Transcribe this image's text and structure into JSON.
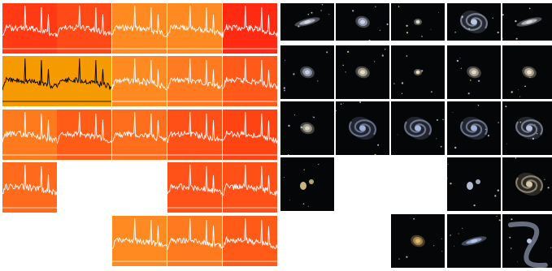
{
  "spectra_panel": {
    "rows": [
      {
        "cells": [
          {
            "color": "#ff3a14",
            "line_color": "#ffffff"
          },
          {
            "color": "#ff4a18",
            "line_color": "#ffffff"
          },
          {
            "color": "#ff8a22",
            "line_color": "#ffffff"
          },
          {
            "color": "#ff8a22",
            "line_color": "#ffffff"
          },
          {
            "color": "#ff2a12",
            "line_color": "#ffffff"
          }
        ]
      },
      {
        "cells": [
          {
            "color": "#f59a00",
            "line_color": "#000000"
          },
          {
            "color": "#f59a00",
            "line_color": "#000000"
          },
          {
            "color": "#ff8a22",
            "line_color": "#ffffff"
          },
          {
            "color": "#ff7a20",
            "line_color": "#ffffff"
          },
          {
            "color": "#ff5a1a",
            "line_color": "#ffffff"
          }
        ]
      },
      {
        "cells": [
          {
            "color": "#ff7a1c",
            "line_color": "#ffffff"
          },
          {
            "color": "#ff5c18",
            "line_color": "#ffffff"
          },
          {
            "color": "#ff6e1c",
            "line_color": "#ffffff"
          },
          {
            "color": "#ff5018",
            "line_color": "#ffffff"
          },
          {
            "color": "#ff4414",
            "line_color": "#ffffff"
          }
        ]
      },
      {
        "cells": [
          {
            "color": "#ff6a1c",
            "line_color": "#ffffff"
          },
          null,
          null,
          {
            "color": "#ff5218",
            "line_color": "#ffffff"
          },
          {
            "color": "#ff5018",
            "line_color": "#ffffff"
          }
        ]
      },
      {
        "cells": [
          null,
          null,
          {
            "color": "#ff8a22",
            "line_color": "#ffffff"
          },
          {
            "color": "#ff7a1e",
            "line_color": "#ffffff"
          },
          {
            "color": "#ff5a18",
            "line_color": "#ffffff"
          }
        ]
      }
    ]
  },
  "galaxy_panel": {
    "rows": [
      {
        "cells": [
          {
            "type": "edge-on",
            "color": "#cfd6e6"
          },
          {
            "type": "elliptical",
            "color": "#c9d2ea"
          },
          {
            "type": "compact",
            "color": "#d8d8d0"
          },
          {
            "type": "spiral",
            "color": "#b9c6e6"
          },
          {
            "type": "edge-on",
            "color": "#d6d8e0"
          }
        ]
      },
      {
        "cells": [
          {
            "type": "elliptical",
            "color": "#c6cde4"
          },
          {
            "type": "elliptical",
            "color": "#e6dcc4"
          },
          {
            "type": "compact",
            "color": "#e8dcc0"
          },
          {
            "type": "elliptical",
            "color": "#e2d8c2"
          },
          {
            "type": "elliptical",
            "color": "#ece0c8"
          }
        ]
      },
      {
        "cells": [
          {
            "type": "elliptical",
            "color": "#d8d2c0"
          },
          {
            "type": "spiral",
            "color": "#9fb0dc"
          },
          {
            "type": "spiral",
            "color": "#a8b8e0"
          },
          {
            "type": "spiral",
            "color": "#a4b4dc"
          },
          {
            "type": "spiral",
            "color": "#b8c2e0"
          }
        ]
      },
      {
        "cells": [
          {
            "type": "pair",
            "color": "#e0c890"
          },
          null,
          null,
          {
            "type": "pair",
            "color": "#c8d0e8"
          },
          {
            "type": "spiral",
            "color": "#d8c8a8"
          }
        ]
      },
      {
        "cells": [
          null,
          null,
          {
            "type": "elliptical",
            "color": "#e0b870"
          },
          {
            "type": "edge-on",
            "color": "#b4c4ec"
          },
          {
            "type": "arc",
            "color": "#b8c4e4"
          }
        ]
      }
    ]
  }
}
